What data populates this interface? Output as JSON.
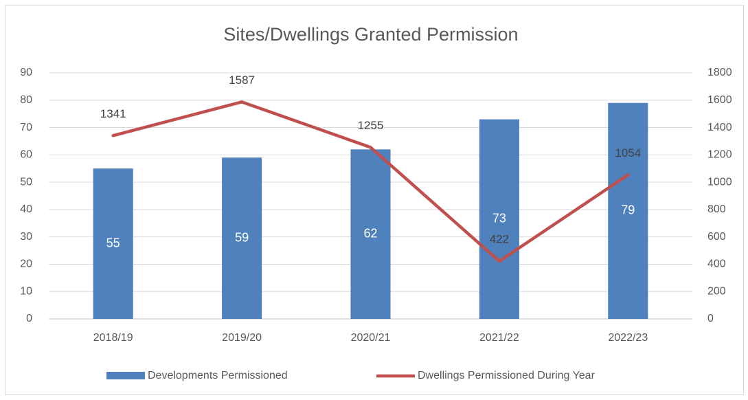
{
  "chart_data": {
    "type": "combo",
    "title": "Sites/Dwellings Granted Permission",
    "categories": [
      "2018/19",
      "2019/20",
      "2020/21",
      "2021/22",
      "2022/23"
    ],
    "series": [
      {
        "name": "Developments Permissioned",
        "type": "bar",
        "color": "#4f81bd",
        "values": [
          55,
          59,
          62,
          73,
          79
        ]
      },
      {
        "name": "Dwellings Permissioned During Year",
        "type": "line",
        "axis": "y2",
        "color": "#c0504d",
        "values": [
          1341,
          1587,
          1255,
          422,
          1054
        ]
      }
    ],
    "ylim": [
      0,
      90
    ],
    "yticks": [
      0,
      10,
      20,
      30,
      40,
      50,
      60,
      70,
      80,
      90
    ],
    "y2lim": [
      0,
      1800
    ],
    "y2ticks": [
      0,
      200,
      400,
      600,
      800,
      1000,
      1200,
      1400,
      1600,
      1800
    ],
    "grid": true,
    "legend": "bottom"
  }
}
